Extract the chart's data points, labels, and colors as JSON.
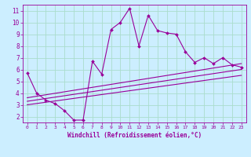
{
  "xlabel": "Windchill (Refroidissement éolien,°C)",
  "background_color": "#cceeff",
  "grid_color": "#aaddcc",
  "line_color": "#990099",
  "xlim": [
    -0.5,
    23.5
  ],
  "ylim": [
    1.5,
    11.5
  ],
  "xticks": [
    0,
    1,
    2,
    3,
    4,
    5,
    6,
    7,
    8,
    9,
    10,
    11,
    12,
    13,
    14,
    15,
    16,
    17,
    18,
    19,
    20,
    21,
    22,
    23
  ],
  "yticks": [
    2,
    3,
    4,
    5,
    6,
    7,
    8,
    9,
    10,
    11
  ],
  "main_x": [
    0,
    1,
    2,
    3,
    4,
    5,
    6,
    7,
    8,
    9,
    10,
    11,
    12,
    13,
    14,
    15,
    16,
    17,
    18,
    19,
    20,
    21,
    22,
    23
  ],
  "main_y": [
    5.7,
    4.0,
    3.4,
    3.1,
    2.5,
    1.7,
    1.7,
    6.7,
    5.6,
    9.4,
    10.0,
    11.2,
    8.0,
    10.6,
    9.3,
    9.1,
    9.0,
    7.5,
    6.6,
    7.0,
    6.5,
    7.0,
    6.4,
    6.2
  ],
  "trend1_x": [
    0,
    23
  ],
  "trend1_y": [
    3.6,
    6.5
  ],
  "trend2_x": [
    0,
    23
  ],
  "trend2_y": [
    3.3,
    6.0
  ],
  "trend3_x": [
    0,
    23
  ],
  "trend3_y": [
    3.0,
    5.5
  ]
}
